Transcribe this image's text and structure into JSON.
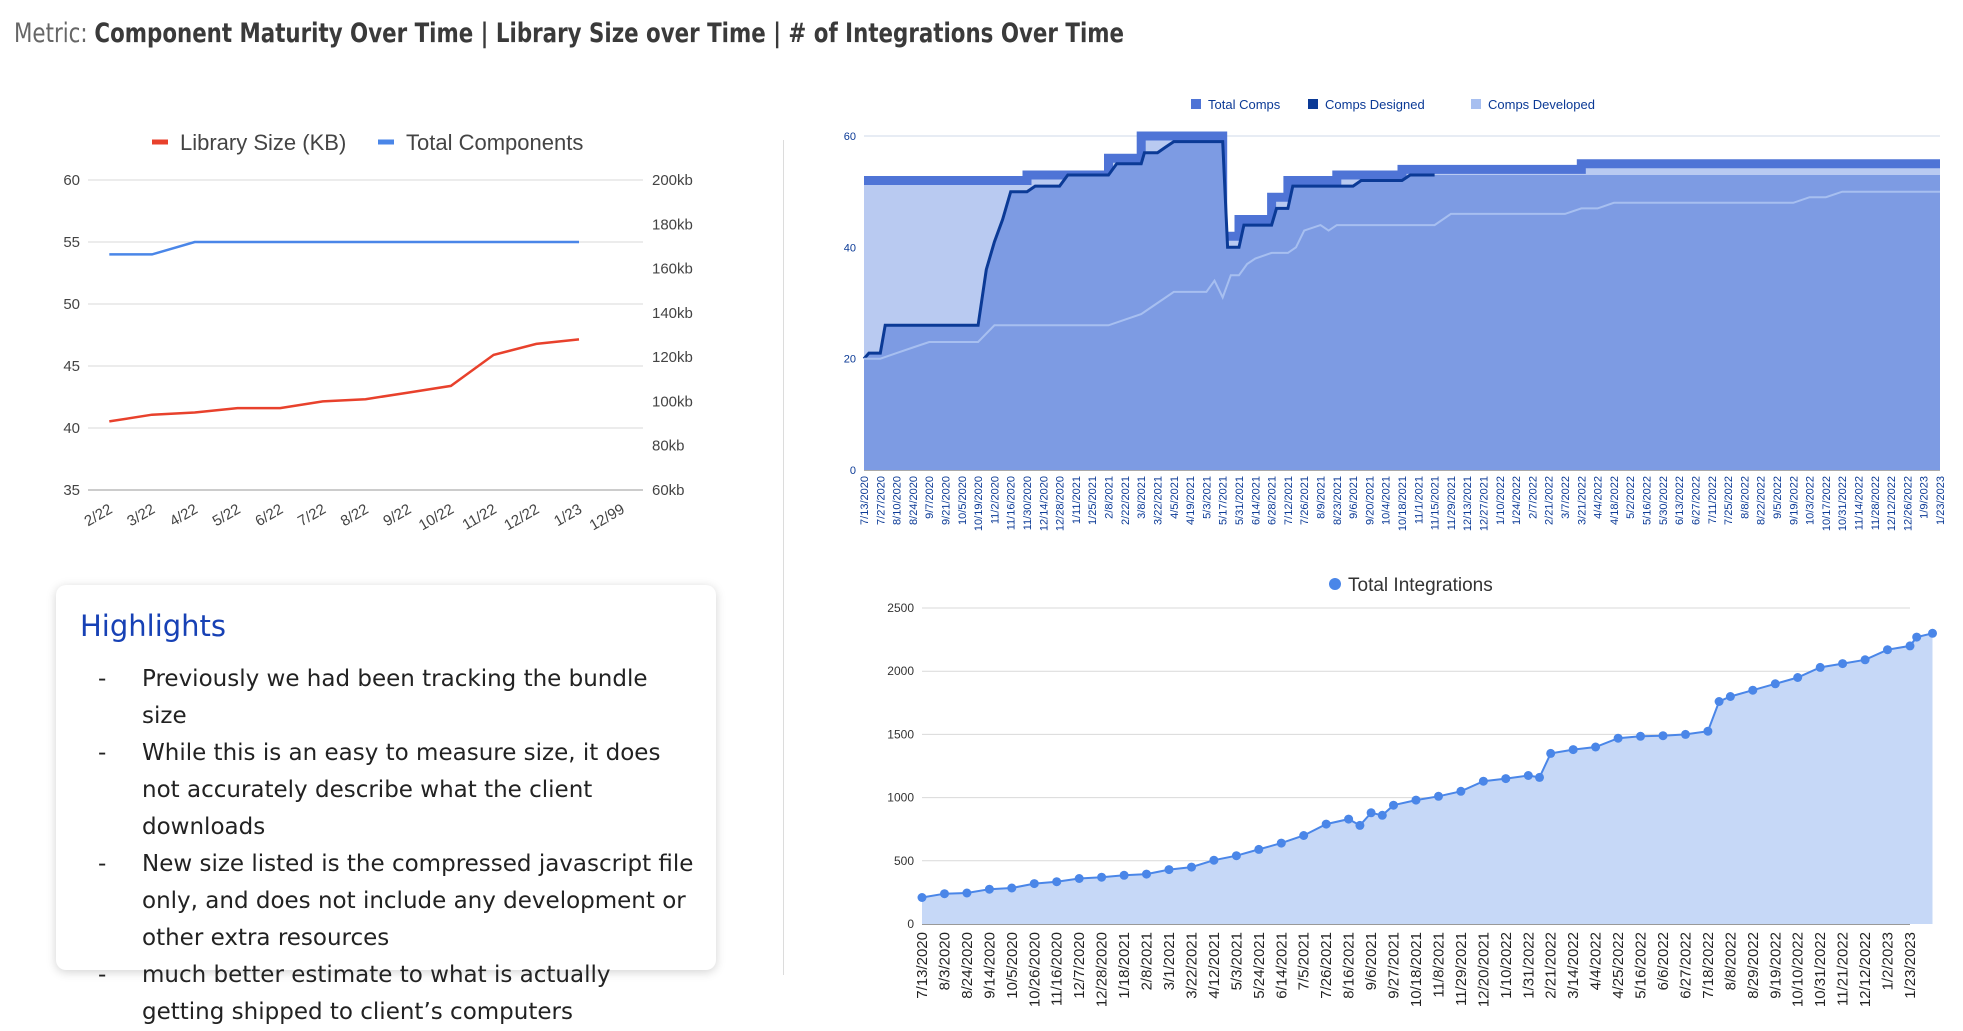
{
  "header": {
    "prefix": "Metric:",
    "title": "Component Maturity Over Time | Library Size over Time | # of Integrations Over Time"
  },
  "highlights": {
    "title": "Highlights",
    "items": [
      "Previously we had been tracking the bundle size",
      "While this is an easy to measure size, it does not accurately describe what the client downloads",
      "New size listed is the compressed javascript file only, and does not include any development or other extra resources",
      "much better estimate to what is actually getting shipped to client’s computers"
    ]
  },
  "chart_data": [
    {
      "type": "line",
      "title": "",
      "categories": [
        "2/22",
        "3/22",
        "4/22",
        "5/22",
        "6/22",
        "7/22",
        "8/22",
        "9/22",
        "10/22",
        "11/22",
        "12/22",
        "1/23",
        "12/99"
      ],
      "series": [
        {
          "name": "Library Size (KB)",
          "axis": "right",
          "color": "#e8412c",
          "values": [
            91,
            94,
            95,
            97,
            97,
            100,
            101,
            104,
            107,
            121,
            126,
            128,
            null
          ]
        },
        {
          "name": "Total Components",
          "axis": "left",
          "color": "#4a86e8",
          "values": [
            54,
            54,
            55,
            55,
            55,
            55,
            55,
            55,
            55,
            55,
            55,
            55,
            null
          ]
        }
      ],
      "y_left": {
        "ylim": [
          35,
          60
        ],
        "ticks": [
          "35",
          "40",
          "45",
          "50",
          "55",
          "60"
        ]
      },
      "y_right": {
        "ylim": [
          60,
          200
        ],
        "ticks": [
          "60kb",
          "80kb",
          "100kb",
          "120kb",
          "140kb",
          "160kb",
          "180kb",
          "200kb"
        ]
      },
      "legend": "top",
      "grid": true
    },
    {
      "type": "area",
      "title": "",
      "x_ticks": [
        "7/13/2020",
        "7/27/2020",
        "8/10/2020",
        "8/24/2020",
        "9/7/2020",
        "9/21/2020",
        "10/5/2020",
        "10/19/2020",
        "11/2/2020",
        "11/16/2020",
        "11/30/2020",
        "12/14/2020",
        "12/28/2020",
        "1/11/2021",
        "1/25/2021",
        "2/8/2021",
        "2/22/2021",
        "3/8/2021",
        "3/22/2021",
        "4/5/2021",
        "4/19/2021",
        "5/3/2021",
        "5/17/2021",
        "5/31/2021",
        "6/14/2021",
        "6/28/2021",
        "7/12/2021",
        "7/26/2021",
        "8/9/2021",
        "8/23/2021",
        "9/6/2021",
        "9/20/2021",
        "10/4/2021",
        "10/18/2021",
        "11/1/2021",
        "11/15/2021",
        "11/29/2021",
        "12/13/2021",
        "12/27/2021",
        "1/10/2022",
        "1/24/2022",
        "2/7/2022",
        "2/21/2022",
        "3/7/2022",
        "3/21/2022",
        "4/4/2022",
        "4/18/2022",
        "5/2/2022",
        "5/16/2022",
        "5/30/2022",
        "6/13/2022",
        "6/27/2022",
        "7/11/2022",
        "7/25/2022",
        "8/8/2022",
        "8/22/2022",
        "9/5/2022",
        "9/19/2022",
        "10/3/2022",
        "10/17/2022",
        "10/31/2022",
        "11/14/2022",
        "11/28/2022",
        "12/12/2022",
        "12/26/2022",
        "1/9/2023",
        "1/23/2023"
      ],
      "ylim": [
        0,
        60
      ],
      "y_ticks": [
        "0",
        "20",
        "40",
        "60"
      ],
      "series": [
        {
          "name": "Total Comps",
          "color": "#4f74d6",
          "points": [
            [
              0,
              52
            ],
            [
              10,
              52
            ],
            [
              10,
              53
            ],
            [
              15,
              53
            ],
            [
              15,
              56
            ],
            [
              17,
              56
            ],
            [
              17,
              60
            ],
            [
              22,
              60
            ],
            [
              22,
              42
            ],
            [
              23,
              42
            ],
            [
              23,
              45
            ],
            [
              25,
              45
            ],
            [
              25,
              49
            ],
            [
              26,
              49
            ],
            [
              26,
              52
            ],
            [
              29,
              52
            ],
            [
              29,
              53
            ],
            [
              33,
              53
            ],
            [
              33,
              54
            ],
            [
              44,
              54
            ],
            [
              44,
              55
            ],
            [
              66,
              55
            ]
          ]
        },
        {
          "name": "Comps Designed",
          "color": "#0b3a96",
          "points": [
            [
              0,
              20
            ],
            [
              0.3,
              21
            ],
            [
              1,
              21
            ],
            [
              1.3,
              26
            ],
            [
              7,
              26
            ],
            [
              7.5,
              36
            ],
            [
              8,
              41
            ],
            [
              8.5,
              45
            ],
            [
              9,
              50
            ],
            [
              10,
              50
            ],
            [
              10.5,
              51
            ],
            [
              12,
              51
            ],
            [
              12.5,
              53
            ],
            [
              15,
              53
            ],
            [
              15.5,
              55
            ],
            [
              16,
              55
            ],
            [
              17,
              55
            ],
            [
              17.2,
              57
            ],
            [
              18,
              57
            ],
            [
              18.5,
              58
            ],
            [
              19,
              59
            ],
            [
              21,
              59
            ],
            [
              22,
              59
            ],
            [
              22.3,
              40
            ],
            [
              23,
              40
            ],
            [
              23.3,
              44
            ],
            [
              25,
              44
            ],
            [
              25.3,
              47
            ],
            [
              26,
              47
            ],
            [
              26.3,
              51
            ],
            [
              30,
              51
            ],
            [
              30.5,
              52
            ],
            [
              33,
              52
            ],
            [
              33.5,
              53
            ],
            [
              35,
              53
            ]
          ]
        },
        {
          "name": "Comps Developed",
          "color": "#a7bff0",
          "points": [
            [
              0,
              20
            ],
            [
              1,
              20
            ],
            [
              2,
              21
            ],
            [
              3,
              22
            ],
            [
              4,
              23
            ],
            [
              7,
              23
            ],
            [
              8,
              26
            ],
            [
              15,
              26
            ],
            [
              16,
              27
            ],
            [
              17,
              28
            ],
            [
              18,
              30
            ],
            [
              19,
              32
            ],
            [
              21,
              32
            ],
            [
              21.5,
              34
            ],
            [
              22,
              31
            ],
            [
              22.5,
              35
            ],
            [
              23,
              35
            ],
            [
              23.5,
              37
            ],
            [
              24,
              38
            ],
            [
              25,
              39
            ],
            [
              26,
              39
            ],
            [
              26.5,
              40
            ],
            [
              27,
              43
            ],
            [
              28,
              44
            ],
            [
              28.5,
              43
            ],
            [
              29,
              44
            ],
            [
              35,
              44
            ],
            [
              36,
              46
            ],
            [
              43,
              46
            ],
            [
              44,
              47
            ],
            [
              45,
              47
            ],
            [
              46,
              48
            ],
            [
              57,
              48
            ],
            [
              58,
              49
            ],
            [
              59,
              49
            ],
            [
              60,
              50
            ],
            [
              66,
              50
            ]
          ]
        }
      ],
      "legend": "top",
      "grid": true
    },
    {
      "type": "area",
      "title": "",
      "x_ticks": [
        "7/13/2020",
        "8/3/2020",
        "8/24/2020",
        "9/14/2020",
        "10/5/2020",
        "10/26/2020",
        "11/16/2020",
        "12/7/2020",
        "12/28/2020",
        "1/18/2021",
        "2/8/2021",
        "3/1/2021",
        "3/22/2021",
        "4/12/2021",
        "5/3/2021",
        "5/24/2021",
        "6/14/2021",
        "7/5/2021",
        "7/26/2021",
        "8/16/2021",
        "9/6/2021",
        "9/27/2021",
        "10/18/2021",
        "11/8/2021",
        "11/29/2021",
        "12/20/2021",
        "1/10/2022",
        "1/31/2022",
        "2/21/2022",
        "3/14/2022",
        "4/4/2022",
        "4/25/2022",
        "5/16/2022",
        "6/6/2022",
        "6/27/2022",
        "7/18/2022",
        "8/8/2022",
        "8/29/2022",
        "9/19/2022",
        "10/10/2022",
        "10/31/2022",
        "11/21/2022",
        "12/12/2022",
        "1/2/2023",
        "1/23/2023"
      ],
      "ylim": [
        0,
        2500
      ],
      "y_ticks": [
        "0",
        "500",
        "1000",
        "1500",
        "2000",
        "2500"
      ],
      "series": [
        {
          "name": "Total Integrations",
          "color": "#4a86e8",
          "points": [
            [
              0,
              210
            ],
            [
              1,
              240
            ],
            [
              2,
              245
            ],
            [
              3,
              275
            ],
            [
              4,
              285
            ],
            [
              5,
              320
            ],
            [
              6,
              335
            ],
            [
              7,
              360
            ],
            [
              8,
              370
            ],
            [
              9,
              385
            ],
            [
              10,
              395
            ],
            [
              11,
              430
            ],
            [
              12,
              450
            ],
            [
              13,
              505
            ],
            [
              14,
              540
            ],
            [
              15,
              590
            ],
            [
              16,
              640
            ],
            [
              17,
              700
            ],
            [
              18,
              790
            ],
            [
              19,
              830
            ],
            [
              19.5,
              780
            ],
            [
              20,
              880
            ],
            [
              20.5,
              860
            ],
            [
              21,
              940
            ],
            [
              22,
              980
            ],
            [
              23,
              1010
            ],
            [
              24,
              1050
            ],
            [
              25,
              1130
            ],
            [
              26,
              1150
            ],
            [
              27,
              1175
            ],
            [
              27.5,
              1160
            ],
            [
              28,
              1350
            ],
            [
              29,
              1380
            ],
            [
              30,
              1400
            ],
            [
              31,
              1470
            ],
            [
              32,
              1485
            ],
            [
              33,
              1490
            ],
            [
              34,
              1500
            ],
            [
              35,
              1525
            ],
            [
              35.5,
              1760
            ],
            [
              36,
              1800
            ],
            [
              37,
              1850
            ],
            [
              38,
              1900
            ],
            [
              39,
              1950
            ],
            [
              40,
              2030
            ],
            [
              41,
              2060
            ],
            [
              42,
              2090
            ],
            [
              43,
              2170
            ],
            [
              44,
              2200
            ],
            [
              44.3,
              2270
            ],
            [
              45,
              2300
            ]
          ]
        }
      ],
      "legend": "top",
      "grid": true
    }
  ]
}
